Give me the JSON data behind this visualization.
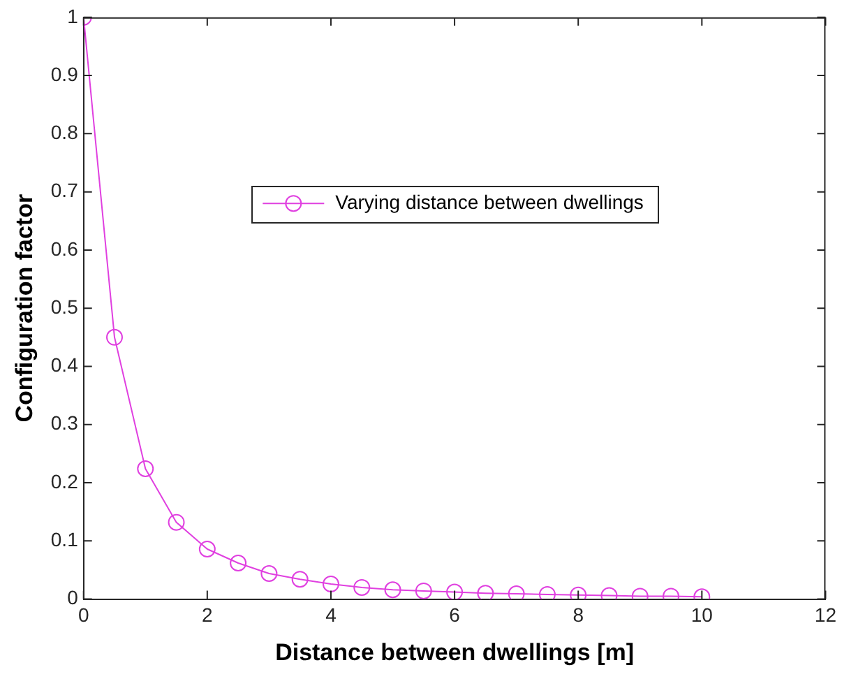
{
  "chart_data": {
    "type": "line",
    "xlabel": "Distance between dwellings [m]",
    "ylabel": "Configuration factor",
    "x": [
      0,
      0.5,
      1,
      1.5,
      2,
      2.5,
      3,
      3.5,
      4,
      4.5,
      5,
      5.5,
      6,
      6.5,
      7,
      7.5,
      8,
      8.5,
      9,
      9.5,
      10
    ],
    "series": [
      {
        "name": "Varying distance between dwellings",
        "color": "#e040e0",
        "values": [
          1,
          0.45,
          0.224,
          0.132,
          0.086,
          0.062,
          0.044,
          0.034,
          0.026,
          0.02,
          0.016,
          0.014,
          0.012,
          0.01,
          0.009,
          0.008,
          0.007,
          0.006,
          0.005,
          0.005,
          0.004
        ]
      }
    ],
    "xlim": [
      0,
      12
    ],
    "xticks": [
      0,
      2,
      4,
      6,
      8,
      10,
      12
    ],
    "ylim": [
      0,
      1
    ],
    "yticks": [
      0,
      0.1,
      0.2,
      0.3,
      0.4,
      0.5,
      0.6,
      0.7,
      0.8,
      0.9,
      1
    ],
    "grid": false,
    "legend": "top",
    "marker": "circle",
    "line_style": "solid"
  }
}
